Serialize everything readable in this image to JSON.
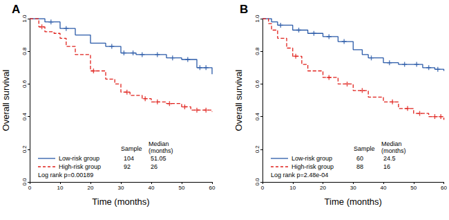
{
  "chart_data": [
    {
      "type": "line",
      "title": "A",
      "x_label": "Time (months)",
      "y_label": "Overall survival",
      "xlim": [
        0,
        60
      ],
      "xticks": [
        0,
        10,
        20,
        30,
        40,
        50,
        60
      ],
      "ylim": [
        0,
        1
      ],
      "yticks": [
        {
          "value": 0,
          "label": "0.0"
        },
        {
          "value": 0.2,
          "label": "0.2"
        },
        {
          "value": 0.4,
          "label": "0.4"
        },
        {
          "value": 0.6,
          "label": "0.6"
        },
        {
          "value": 0.8,
          "label": "0.8"
        },
        {
          "value": 1,
          "label": "1.0"
        }
      ],
      "grid": false,
      "table_headers": [
        "Sample",
        "Median\n(months)"
      ],
      "annotation": "Log rank p=0.00189",
      "series": [
        {
          "name": "Low-risk group",
          "color": "#2a5aa8",
          "line_style": "solid",
          "marker": "plus",
          "sample": 104,
          "median": 51.05,
          "x": [
            0,
            5,
            10,
            15,
            20,
            25,
            30,
            35,
            40,
            45,
            50,
            55,
            60
          ],
          "values": [
            1.0,
            0.98,
            0.94,
            0.9,
            0.85,
            0.83,
            0.79,
            0.78,
            0.78,
            0.76,
            0.75,
            0.7,
            0.66
          ],
          "censored": [
            [
              7,
              0.98
            ],
            [
              12,
              0.94
            ],
            [
              27,
              0.83
            ],
            [
              31,
              0.79
            ],
            [
              34,
              0.79
            ],
            [
              37,
              0.78
            ],
            [
              42,
              0.78
            ],
            [
              47,
              0.76
            ],
            [
              52,
              0.75
            ],
            [
              56,
              0.7
            ],
            [
              58,
              0.7
            ]
          ]
        },
        {
          "name": "High-risk group",
          "color": "#e0201b",
          "line_style": "dashed",
          "marker": "plus",
          "sample": 92,
          "median": 26,
          "x": [
            0,
            3,
            5,
            8,
            10,
            12,
            15,
            20,
            25,
            28,
            30,
            33,
            37,
            40,
            45,
            50,
            53,
            60
          ],
          "values": [
            1.0,
            0.95,
            0.92,
            0.91,
            0.88,
            0.83,
            0.78,
            0.68,
            0.63,
            0.6,
            0.55,
            0.53,
            0.51,
            0.49,
            0.48,
            0.46,
            0.44,
            0.43
          ],
          "censored": [
            [
              4,
              0.95
            ],
            [
              21,
              0.68
            ],
            [
              32,
              0.55
            ],
            [
              38,
              0.51
            ],
            [
              42,
              0.49
            ],
            [
              46,
              0.48
            ],
            [
              51,
              0.46
            ],
            [
              55,
              0.44
            ],
            [
              58,
              0.44
            ]
          ]
        }
      ]
    },
    {
      "type": "line",
      "title": "B",
      "x_label": "Time (months)",
      "y_label": "Overall survival",
      "xlim": [
        0,
        60
      ],
      "xticks": [
        0,
        10,
        20,
        30,
        40,
        50,
        60
      ],
      "ylim": [
        0,
        1
      ],
      "yticks": [
        {
          "value": 0,
          "label": "0.0"
        },
        {
          "value": 0.2,
          "label": "0.2"
        },
        {
          "value": 0.4,
          "label": "0.4"
        },
        {
          "value": 0.6,
          "label": "0.6"
        },
        {
          "value": 0.8,
          "label": "0.8"
        },
        {
          "value": 1,
          "label": "1.0"
        }
      ],
      "grid": false,
      "table_headers": [
        "Sample",
        "Median\n(months)"
      ],
      "annotation": "Log rank p=2.48e-04",
      "series": [
        {
          "name": "Low-risk group",
          "color": "#2a5aa8",
          "line_style": "solid",
          "marker": "plus",
          "sample": 60,
          "median": 24.5,
          "x": [
            0,
            3,
            5,
            10,
            15,
            20,
            25,
            30,
            33,
            35,
            40,
            45,
            50,
            53,
            57,
            60
          ],
          "values": [
            1.0,
            0.98,
            0.96,
            0.93,
            0.91,
            0.89,
            0.86,
            0.81,
            0.78,
            0.76,
            0.73,
            0.72,
            0.72,
            0.7,
            0.69,
            0.68
          ],
          "censored": [
            [
              6,
              0.96
            ],
            [
              12,
              0.93
            ],
            [
              17,
              0.91
            ],
            [
              22,
              0.89
            ],
            [
              27,
              0.86
            ],
            [
              36,
              0.76
            ],
            [
              42,
              0.73
            ],
            [
              47,
              0.72
            ],
            [
              51,
              0.72
            ],
            [
              55,
              0.7
            ],
            [
              58,
              0.69
            ]
          ]
        },
        {
          "name": "High-risk group",
          "color": "#e0201b",
          "line_style": "dashed",
          "marker": "plus",
          "sample": 88,
          "median": 16,
          "x": [
            0,
            2,
            3,
            5,
            8,
            10,
            13,
            15,
            20,
            25,
            30,
            35,
            40,
            45,
            50,
            55,
            60
          ],
          "values": [
            1.0,
            0.97,
            0.93,
            0.88,
            0.82,
            0.77,
            0.72,
            0.68,
            0.64,
            0.6,
            0.56,
            0.52,
            0.49,
            0.45,
            0.42,
            0.4,
            0.38
          ],
          "censored": [
            [
              11,
              0.77
            ],
            [
              22,
              0.64
            ],
            [
              28,
              0.6
            ],
            [
              33,
              0.56
            ],
            [
              43,
              0.49
            ],
            [
              48,
              0.45
            ],
            [
              52,
              0.42
            ],
            [
              57,
              0.4
            ],
            [
              59,
              0.4
            ]
          ]
        }
      ]
    }
  ]
}
